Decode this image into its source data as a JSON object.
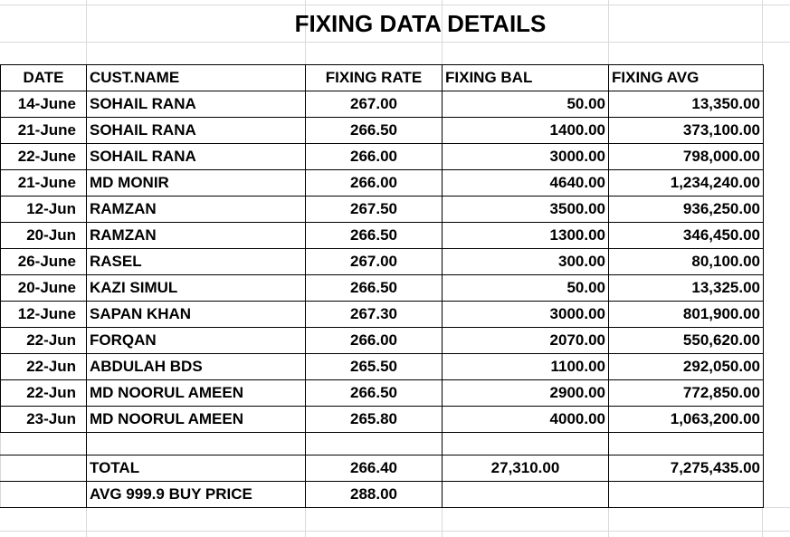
{
  "title": "FIXING DATA DETAILS",
  "headers": {
    "date": "DATE",
    "cust_name": "CUST.NAME",
    "fixing_rate": "FIXING RATE",
    "fixing_bal": "FIXING BAL",
    "fixing_avg": "FIXING AVG"
  },
  "rows": [
    {
      "date": "14-June",
      "name": "SOHAIL RANA",
      "rate": "267.00",
      "bal": "50.00",
      "avg": "13,350.00"
    },
    {
      "date": "21-June",
      "name": "SOHAIL RANA",
      "rate": "266.50",
      "bal": "1400.00",
      "avg": "373,100.00"
    },
    {
      "date": "22-June",
      "name": "SOHAIL RANA",
      "rate": "266.00",
      "bal": "3000.00",
      "avg": "798,000.00"
    },
    {
      "date": "21-June",
      "name": "MD MONIR",
      "rate": "266.00",
      "bal": "4640.00",
      "avg": "1,234,240.00"
    },
    {
      "date": "12-Jun",
      "name": "RAMZAN",
      "rate": "267.50",
      "bal": "3500.00",
      "avg": "936,250.00"
    },
    {
      "date": "20-Jun",
      "name": "RAMZAN",
      "rate": "266.50",
      "bal": "1300.00",
      "avg": "346,450.00"
    },
    {
      "date": "26-June",
      "name": "RASEL",
      "rate": "267.00",
      "bal": "300.00",
      "avg": "80,100.00"
    },
    {
      "date": "20-June",
      "name": "KAZI SIMUL",
      "rate": "266.50",
      "bal": "50.00",
      "avg": "13,325.00"
    },
    {
      "date": "12-June",
      "name": "SAPAN KHAN",
      "rate": "267.30",
      "bal": "3000.00",
      "avg": "801,900.00"
    },
    {
      "date": "22-Jun",
      "name": "FORQAN",
      "rate": "266.00",
      "bal": "2070.00",
      "avg": "550,620.00"
    },
    {
      "date": "22-Jun",
      "name": "ABDULAH BDS",
      "rate": "265.50",
      "bal": "1100.00",
      "avg": "292,050.00"
    },
    {
      "date": "22-Jun",
      "name": "MD NOORUL AMEEN",
      "rate": "266.50",
      "bal": "2900.00",
      "avg": "772,850.00"
    },
    {
      "date": "23-Jun",
      "name": "MD NOORUL AMEEN",
      "rate": "265.80",
      "bal": "4000.00",
      "avg": "1,063,200.00"
    }
  ],
  "total": {
    "label": "TOTAL",
    "rate": "266.40",
    "bal": "27,310.00",
    "avg": "7,275,435.00"
  },
  "avg_buy": {
    "label": "AVG 999.9 BUY PRICE",
    "rate": "288.00"
  }
}
